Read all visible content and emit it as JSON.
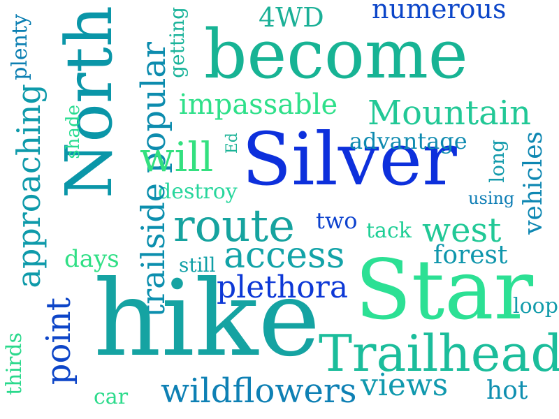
{
  "words": {
    "become": "become",
    "silver": "Silver",
    "north": "North",
    "star": "Star",
    "hike": "hike",
    "trailhead": "Trailhead",
    "mountain": "Mountain",
    "route": "route",
    "access": "access",
    "plethora": "plethora",
    "wildflowers": "wildflowers",
    "approaching": "approaching",
    "popular": "popular",
    "impassable": "impassable",
    "will": "will",
    "numerous": "numerous",
    "four_wd": "4WD",
    "advantage": "advantage",
    "vehicles": "vehicles",
    "west": "west",
    "forest": "forest",
    "trailside": "trailside",
    "point": "point",
    "views": "views",
    "plenty": "plenty",
    "getting": "getting",
    "shade": "shade",
    "ed": "Ed",
    "destroy": "destroy",
    "long": "long",
    "using": "using",
    "two": "two",
    "tack": "tack",
    "days": "days",
    "still": "still",
    "loop": "loop",
    "thirds": "thirds",
    "car": "car",
    "hot": "hot"
  }
}
